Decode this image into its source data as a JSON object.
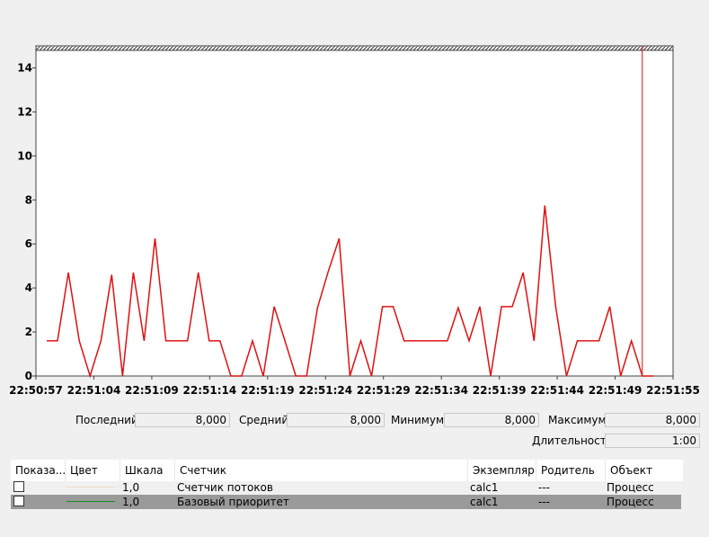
{
  "chart_data": {
    "type": "line",
    "ylim": [
      0,
      15
    ],
    "yticks": [
      "0",
      "2",
      "4",
      "6",
      "8",
      "10",
      "12",
      "14"
    ],
    "x_tick_labels": [
      "22:50:57",
      "22:51:04",
      "22:51:09",
      "22:51:14",
      "22:51:19",
      "22:51:24",
      "22:51:29",
      "22:51:34",
      "22:51:39",
      "22:51:44",
      "22:51:49",
      "22:51:55"
    ],
    "time_marker_sample": 55,
    "series": [
      {
        "name": "Счетчик потоков",
        "color": "#e01010",
        "values": [
          1.6,
          1.6,
          4.7,
          1.6,
          0,
          1.6,
          4.6,
          0,
          4.7,
          1.6,
          6.25,
          1.6,
          1.6,
          1.6,
          4.7,
          1.6,
          1.6,
          0,
          0,
          1.6,
          0,
          3.15,
          1.6,
          0,
          0,
          3.1,
          4.75,
          6.25,
          0,
          1.6,
          0,
          3.15,
          3.15,
          1.6,
          1.6,
          1.6,
          1.6,
          1.6,
          3.1,
          1.6,
          3.15,
          0,
          3.15,
          3.15,
          4.7,
          1.6,
          7.75,
          3.15,
          0,
          1.6,
          1.6,
          1.6,
          3.15,
          0,
          1.6,
          0,
          0
        ]
      }
    ]
  },
  "stats": {
    "last_label": "Последний",
    "last_value": "8,000",
    "avg_label": "Средний",
    "avg_value": "8,000",
    "min_label": "Минимум",
    "min_value": "8,000",
    "max_label": "Максимум",
    "max_value": "8,000",
    "duration_label": "Длительность",
    "duration_value": "1:00"
  },
  "counters": {
    "headers": [
      "Показа...",
      "Цвет",
      "Шкала",
      "Счетчик",
      "Экземпляр",
      "Родитель",
      "Объект"
    ],
    "rows": [
      {
        "scale": "1,0",
        "counter": "Счетчик потоков",
        "instance": "calc1",
        "parent": "---",
        "object": "Процесс",
        "color": "#f1ddc4",
        "checked": false,
        "selected": false
      },
      {
        "scale": "1,0",
        "counter": "Базовый приоритет",
        "instance": "calc1",
        "parent": "---",
        "object": "Процесс",
        "color": "#1a8a1a",
        "checked": false,
        "selected": true
      }
    ]
  }
}
